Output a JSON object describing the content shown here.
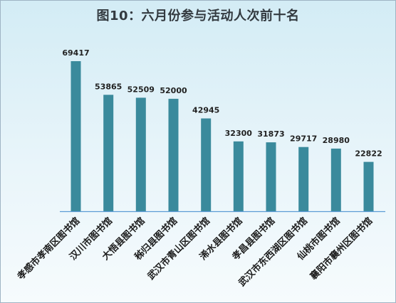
{
  "chart_data": {
    "type": "bar",
    "title": "图10：六月份参与活动人次前十名",
    "categories": [
      "孝感市孝南区图书馆",
      "汉川市图书馆",
      "大悟县图书馆",
      "秭归县图书馆",
      "武汉市青山区图书馆",
      "浠水县图书馆",
      "孝昌县图书馆",
      "武汉市东西湖区图书馆",
      "仙桃市图书馆",
      "襄阳市襄州区图书馆"
    ],
    "values": [
      69417,
      53865,
      52509,
      52000,
      42945,
      32300,
      31873,
      29717,
      28980,
      22822
    ],
    "bar_color": "#3a8a9c",
    "axis_color": "#5b9bd5",
    "grid": false,
    "legend": "none"
  }
}
